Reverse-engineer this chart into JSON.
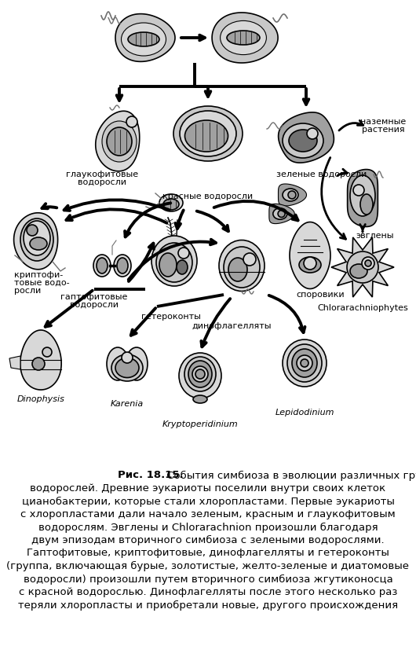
{
  "bg_color": "#ffffff",
  "text_color": "#000000",
  "fig_width": 5.3,
  "fig_height": 8.5,
  "caption_bold": "Рис. 18.15.",
  "caption_rest_line1": " События симбиоза в эволюции различных групп",
  "caption_lines": [
    "водорослей. Древние эукариоты поселили внутри своих клеток",
    "цианобактерии, которые стали хлоропластами. Первые эукариоты",
    "с хлоропластами дали начало зеленым, красным и глаукофитовым",
    "водорослям. Эвглены и Chlorarachnion произошли благодаря",
    "двум эпизодам вторичного симбиоза с зелеными водорослями.",
    "Гаптофитовые, криптофитовые, динофлагелляты и гетероконты",
    "(группа, включающая бурые, золотистые, желто-зеленые и диатомовые",
    "водоросли) произошли путем вторичного симбиоза жгутиконосца",
    "с красной водорослью. Динофлагелляты после этого несколько раз",
    "теряли хлоропласты и приобретали новые, другого происхождения"
  ]
}
